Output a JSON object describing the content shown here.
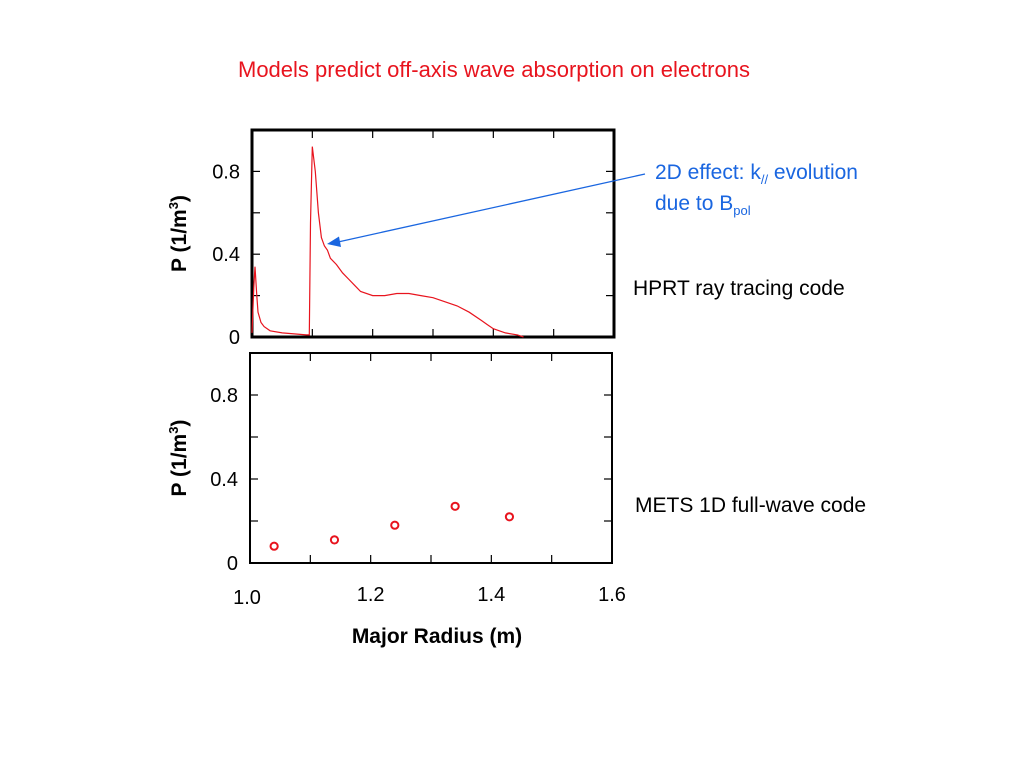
{
  "title": "Models predict off-axis wave absorption on electrons",
  "annotations": {
    "arrow_line1_prefix": "2D effect: k",
    "arrow_line1_sub": "//",
    "arrow_line1_suffix": " evolution",
    "arrow_line2_prefix": "due to B",
    "arrow_line2_sub": "pol",
    "top_label": "HPRT ray tracing code",
    "bottom_label": "METS 1D full-wave code"
  },
  "colors": {
    "title": "#e8141e",
    "series": "#e8141e",
    "arrow": "#1a66e0",
    "axis": "#000000"
  },
  "chart_data": [
    {
      "type": "line",
      "title": "",
      "xlabel": "",
      "ylabel": "P (1/m3)",
      "ylabel_parts": {
        "base": "P (1/m",
        "sup": "3",
        "end": ")"
      },
      "xlim": [
        1.0,
        1.6
      ],
      "ylim": [
        0,
        1.0
      ],
      "yticks": [
        0,
        0.4,
        0.8
      ],
      "ytick_labels": [
        "0",
        "0.4",
        "0.8"
      ],
      "grid": false,
      "series": [
        {
          "x": [
            1.0,
            1.003,
            1.005,
            1.008,
            1.01,
            1.015,
            1.02,
            1.03,
            1.05,
            1.09,
            1.095,
            1.097,
            1.1,
            1.105,
            1.11,
            1.115,
            1.12,
            1.125,
            1.13,
            1.14,
            1.15,
            1.16,
            1.17,
            1.18,
            1.2,
            1.22,
            1.24,
            1.26,
            1.28,
            1.3,
            1.32,
            1.34,
            1.36,
            1.38,
            1.39,
            1.4,
            1.42,
            1.44,
            1.45
          ],
          "y": [
            0.02,
            0.24,
            0.34,
            0.2,
            0.12,
            0.07,
            0.05,
            0.03,
            0.02,
            0.01,
            0.01,
            0.55,
            0.92,
            0.8,
            0.6,
            0.48,
            0.44,
            0.42,
            0.38,
            0.35,
            0.31,
            0.28,
            0.25,
            0.22,
            0.2,
            0.2,
            0.21,
            0.21,
            0.2,
            0.19,
            0.17,
            0.15,
            0.12,
            0.08,
            0.06,
            0.04,
            0.02,
            0.01,
            0.0
          ]
        }
      ]
    },
    {
      "type": "scatter",
      "title": "",
      "xlabel": "Major Radius (m)",
      "ylabel": "P (1/m3)",
      "ylabel_parts": {
        "base": "P (1/m",
        "sup": "3",
        "end": ")"
      },
      "xlim": [
        1.0,
        1.6
      ],
      "ylim": [
        0,
        1.0
      ],
      "yticks": [
        0,
        0.4,
        0.8
      ],
      "ytick_labels": [
        "0",
        "0.4",
        "0.8"
      ],
      "xticks": [
        1.0,
        1.2,
        1.4,
        1.6
      ],
      "xtick_labels": [
        "1.0",
        "1.2",
        "1.4",
        "1.6"
      ],
      "grid": false,
      "series": [
        {
          "x": [
            1.04,
            1.14,
            1.24,
            1.34,
            1.43
          ],
          "y": [
            0.08,
            0.11,
            0.18,
            0.27,
            0.22
          ]
        }
      ]
    }
  ]
}
